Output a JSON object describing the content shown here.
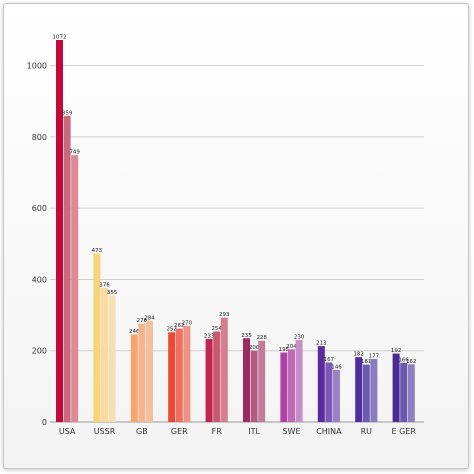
{
  "chart_data": {
    "type": "bar",
    "categories": [
      "USA",
      "USSR",
      "GB",
      "GER",
      "FR",
      "ITL",
      "SWE",
      "CHINA",
      "RU",
      "E GER"
    ],
    "series_values": [
      [
        1072,
        473,
        246,
        252,
        233,
        235,
        195,
        213,
        182,
        192
      ],
      [
        859,
        376,
        276,
        262,
        254,
        200,
        204,
        167,
        161,
        166
      ],
      [
        749,
        355,
        284,
        270,
        293,
        228,
        230,
        146,
        177,
        162
      ]
    ],
    "bar_colors": [
      [
        "#c4093a",
        "#c96a7c",
        "#dc8a96"
      ],
      [
        "#f9d27a",
        "#f9dba0",
        "#f7dfb2"
      ],
      [
        "#f7a66b",
        "#f5b58a",
        "#f3bf9d"
      ],
      [
        "#ec4a35",
        "#ee7060",
        "#ee9285"
      ],
      [
        "#c2234f",
        "#c9586e",
        "#d67d91"
      ],
      [
        "#9a2a60",
        "#b2597f",
        "#c27b9a"
      ],
      [
        "#b040a8",
        "#be6ab6",
        "#c78dc8"
      ],
      [
        "#5b2aa0",
        "#7d58b7",
        "#9b82c6"
      ],
      [
        "#4f2f9f",
        "#6d59ae",
        "#8a7cc0"
      ],
      [
        "#4b2a97",
        "#6b57ab",
        "#8d80c2"
      ]
    ],
    "y_ticks": [
      0,
      200,
      400,
      600,
      800,
      1000
    ],
    "ylim": [
      0,
      1100
    ],
    "grid": true,
    "grid_color": "#cfcfcf"
  }
}
